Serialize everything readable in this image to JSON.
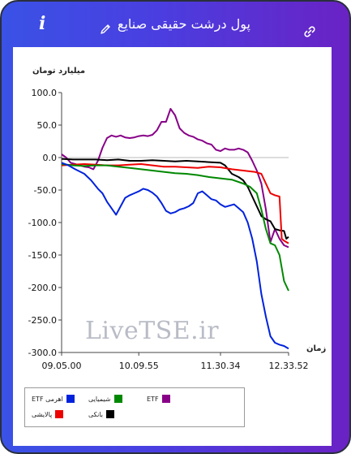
{
  "header": {
    "title": "پول درشت حقیقی صنایع"
  },
  "icons": {
    "info": "info-icon",
    "edit": "pencil-icon",
    "link": "link-icon"
  },
  "watermark": "LiveTSE.ir",
  "chart_data": {
    "type": "line",
    "ylabel": "میلیارد تومان",
    "xlabel": "زمان",
    "ylim": [
      -300,
      100
    ],
    "yticks": [
      "100.0",
      "50.0",
      "0.0",
      "-50.0",
      "-100.0",
      "-150.0",
      "-200.0",
      "-250.0",
      "-300.0"
    ],
    "xticks": [
      "09.05.00",
      "10.09.55",
      "11.30.34",
      "12.33.52"
    ],
    "legend_position": "bottom-left",
    "grid": false,
    "series": [
      {
        "name": "اهرمی ETF",
        "color": "#0022dd",
        "points": [
          [
            0,
            -8
          ],
          [
            3,
            -12
          ],
          [
            6,
            -18
          ],
          [
            10,
            -25
          ],
          [
            13,
            -35
          ],
          [
            16,
            -48
          ],
          [
            18,
            -55
          ],
          [
            20,
            -68
          ],
          [
            22,
            -78
          ],
          [
            24,
            -88
          ],
          [
            26,
            -75
          ],
          [
            28,
            -62
          ],
          [
            30,
            -58
          ],
          [
            32,
            -55
          ],
          [
            34,
            -52
          ],
          [
            36,
            -48
          ],
          [
            38,
            -50
          ],
          [
            40,
            -54
          ],
          [
            42,
            -60
          ],
          [
            44,
            -70
          ],
          [
            46,
            -82
          ],
          [
            48,
            -86
          ],
          [
            50,
            -84
          ],
          [
            52,
            -80
          ],
          [
            54,
            -78
          ],
          [
            56,
            -75
          ],
          [
            58,
            -70
          ],
          [
            60,
            -55
          ],
          [
            62,
            -52
          ],
          [
            64,
            -58
          ],
          [
            66,
            -64
          ],
          [
            68,
            -66
          ],
          [
            70,
            -72
          ],
          [
            72,
            -76
          ],
          [
            74,
            -74
          ],
          [
            76,
            -72
          ],
          [
            78,
            -78
          ],
          [
            80,
            -84
          ],
          [
            82,
            -100
          ],
          [
            84,
            -125
          ],
          [
            86,
            -160
          ],
          [
            88,
            -210
          ],
          [
            90,
            -245
          ],
          [
            92,
            -275
          ],
          [
            94,
            -285
          ],
          [
            96,
            -288
          ],
          [
            98,
            -290
          ],
          [
            100,
            -294
          ]
        ]
      },
      {
        "name": "شیمیایی",
        "color": "#008800",
        "points": [
          [
            0,
            -10
          ],
          [
            5,
            -12
          ],
          [
            10,
            -13
          ],
          [
            15,
            -12
          ],
          [
            20,
            -12
          ],
          [
            25,
            -14
          ],
          [
            30,
            -16
          ],
          [
            35,
            -18
          ],
          [
            40,
            -20
          ],
          [
            45,
            -22
          ],
          [
            50,
            -24
          ],
          [
            55,
            -25
          ],
          [
            60,
            -27
          ],
          [
            65,
            -30
          ],
          [
            70,
            -32
          ],
          [
            75,
            -34
          ],
          [
            80,
            -40
          ],
          [
            83,
            -45
          ],
          [
            86,
            -55
          ],
          [
            88,
            -80
          ],
          [
            90,
            -110
          ],
          [
            92,
            -132
          ],
          [
            94,
            -135
          ],
          [
            96,
            -150
          ],
          [
            98,
            -190
          ],
          [
            100,
            -205
          ]
        ]
      },
      {
        "name": "ETF",
        "color": "#880088",
        "points": [
          [
            0,
            5
          ],
          [
            2,
            0
          ],
          [
            4,
            -8
          ],
          [
            6,
            -10
          ],
          [
            8,
            -12
          ],
          [
            10,
            -14
          ],
          [
            12,
            -15
          ],
          [
            14,
            -18
          ],
          [
            16,
            -5
          ],
          [
            18,
            15
          ],
          [
            20,
            30
          ],
          [
            22,
            34
          ],
          [
            24,
            32
          ],
          [
            26,
            34
          ],
          [
            28,
            31
          ],
          [
            30,
            30
          ],
          [
            32,
            31
          ],
          [
            34,
            33
          ],
          [
            36,
            34
          ],
          [
            38,
            33
          ],
          [
            40,
            35
          ],
          [
            42,
            42
          ],
          [
            44,
            55
          ],
          [
            46,
            55
          ],
          [
            48,
            75
          ],
          [
            50,
            65
          ],
          [
            52,
            45
          ],
          [
            54,
            38
          ],
          [
            56,
            34
          ],
          [
            58,
            32
          ],
          [
            60,
            28
          ],
          [
            62,
            26
          ],
          [
            64,
            22
          ],
          [
            66,
            20
          ],
          [
            68,
            12
          ],
          [
            70,
            10
          ],
          [
            72,
            14
          ],
          [
            74,
            12
          ],
          [
            76,
            12
          ],
          [
            78,
            14
          ],
          [
            80,
            12
          ],
          [
            82,
            8
          ],
          [
            84,
            -5
          ],
          [
            86,
            -20
          ],
          [
            88,
            -40
          ],
          [
            90,
            -80
          ],
          [
            92,
            -130
          ],
          [
            94,
            -110
          ],
          [
            96,
            -125
          ],
          [
            98,
            -135
          ],
          [
            100,
            -138
          ]
        ]
      },
      {
        "name": "پالایشی",
        "color": "#ee0000",
        "points": [
          [
            0,
            -12
          ],
          [
            5,
            -11
          ],
          [
            10,
            -10
          ],
          [
            15,
            -11
          ],
          [
            20,
            -12
          ],
          [
            25,
            -12
          ],
          [
            30,
            -11
          ],
          [
            35,
            -10
          ],
          [
            40,
            -12
          ],
          [
            45,
            -14
          ],
          [
            50,
            -14
          ],
          [
            55,
            -15
          ],
          [
            60,
            -16
          ],
          [
            65,
            -14
          ],
          [
            70,
            -15
          ],
          [
            75,
            -18
          ],
          [
            80,
            -20
          ],
          [
            85,
            -22
          ],
          [
            88,
            -25
          ],
          [
            90,
            -40
          ],
          [
            92,
            -55
          ],
          [
            94,
            -58
          ],
          [
            96,
            -60
          ],
          [
            97,
            -125
          ],
          [
            98,
            -128
          ],
          [
            100,
            -132
          ]
        ]
      },
      {
        "name": "بانکی",
        "color": "#000000",
        "points": [
          [
            0,
            -2
          ],
          [
            5,
            -3
          ],
          [
            10,
            -3
          ],
          [
            15,
            -3
          ],
          [
            20,
            -4
          ],
          [
            25,
            -3
          ],
          [
            30,
            -5
          ],
          [
            35,
            -5
          ],
          [
            40,
            -4
          ],
          [
            45,
            -5
          ],
          [
            50,
            -6
          ],
          [
            55,
            -5
          ],
          [
            60,
            -6
          ],
          [
            65,
            -7
          ],
          [
            70,
            -8
          ],
          [
            72,
            -12
          ],
          [
            75,
            -25
          ],
          [
            78,
            -30
          ],
          [
            80,
            -35
          ],
          [
            82,
            -45
          ],
          [
            84,
            -60
          ],
          [
            86,
            -75
          ],
          [
            88,
            -90
          ],
          [
            90,
            -95
          ],
          [
            92,
            -98
          ],
          [
            94,
            -110
          ],
          [
            96,
            -112
          ],
          [
            98,
            -113
          ],
          [
            99,
            -125
          ],
          [
            100,
            -122
          ]
        ]
      }
    ]
  }
}
